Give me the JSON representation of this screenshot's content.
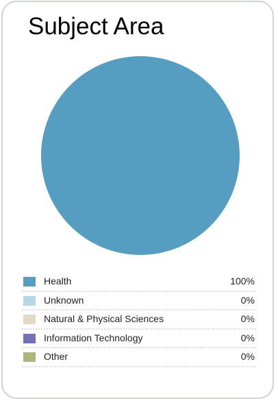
{
  "chart_data": {
    "type": "pie",
    "title": "Subject Area",
    "slices": [
      {
        "label": "Health",
        "value": 100,
        "display": "100%",
        "color": "#559dc1"
      },
      {
        "label": "Unknown",
        "value": 0,
        "display": "0%",
        "color": "#b6d8e6"
      },
      {
        "label": "Natural & Physical Sciences",
        "value": 0,
        "display": "0%",
        "color": "#e0dcc4"
      },
      {
        "label": "Information Technology",
        "value": 0,
        "display": "0%",
        "color": "#7570b3"
      },
      {
        "label": "Other",
        "value": 0,
        "display": "0%",
        "color": "#aab77a"
      }
    ],
    "legend_position": "bottom"
  }
}
